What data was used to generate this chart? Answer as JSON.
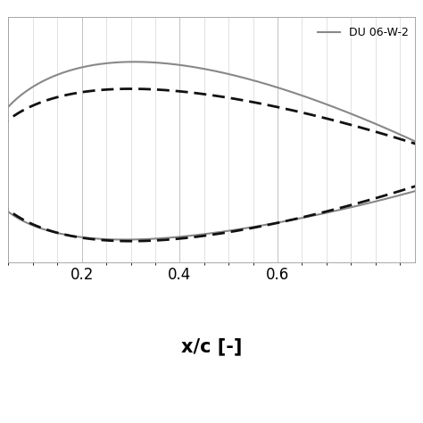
{
  "xlabel": "x/c [-]",
  "xlim": [
    0.05,
    0.88
  ],
  "ylim": [
    -0.115,
    0.175
  ],
  "xticks": [
    0.2,
    0.4,
    0.6
  ],
  "legend_label_du": "DU 06-W-2⁠",
  "du_color": "#888888",
  "naca_color": "#111111",
  "du_linewidth": 1.5,
  "naca_linewidth": 2.0,
  "xlabel_fontsize": 15,
  "xlabel_fontweight": "bold",
  "tick_fontsize": 12,
  "grid_color": "#aaaaaa",
  "grid_linewidth": 0.5,
  "minor_grid_color": "#cccccc",
  "minor_grid_linewidth": 0.4
}
